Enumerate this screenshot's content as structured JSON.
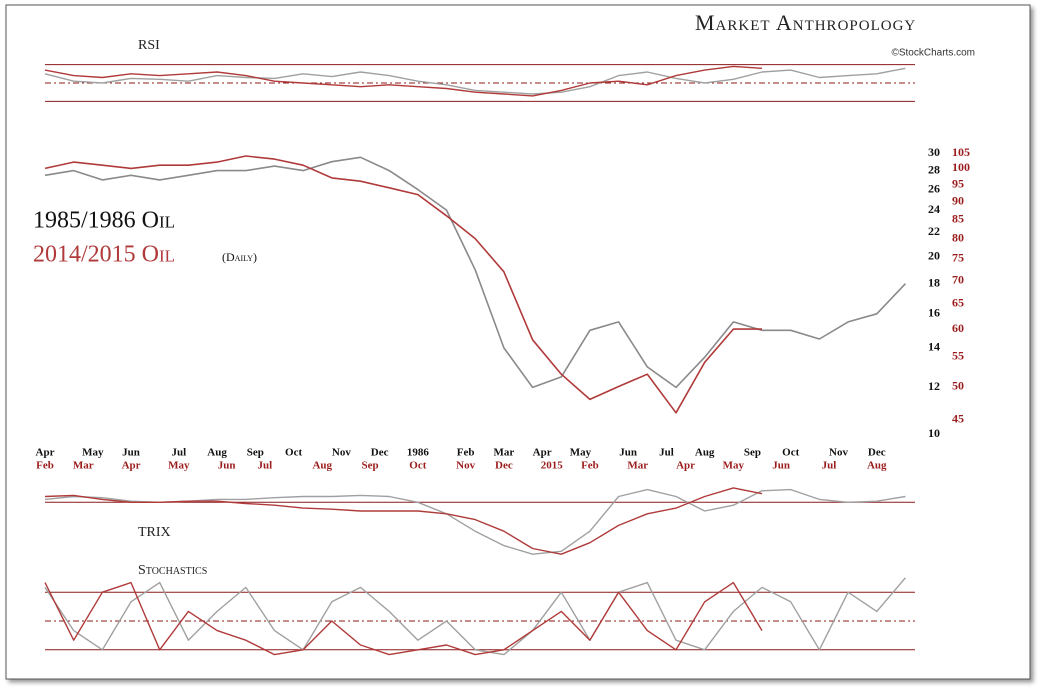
{
  "header": {
    "title": "Market Anthropology",
    "credit": "©StockCharts.com"
  },
  "chart_data": [
    {
      "type": "line",
      "title": "RSI",
      "ylim": [
        25,
        75
      ],
      "hlines": [
        30,
        50,
        70
      ],
      "xlim": [
        0,
        91
      ],
      "series": [
        {
          "name": "1985/1986 Oil",
          "color": "#a0a0a0",
          "x": [
            0,
            3,
            6,
            9,
            12,
            15,
            18,
            21,
            24,
            27,
            30,
            33,
            36,
            39,
            42,
            45,
            48,
            51,
            54,
            57,
            60,
            63,
            66,
            69,
            72,
            75,
            78,
            81,
            84,
            87,
            90
          ],
          "values": [
            60,
            52,
            50,
            55,
            54,
            52,
            58,
            56,
            55,
            60,
            57,
            62,
            58,
            52,
            48,
            42,
            40,
            38,
            40,
            46,
            58,
            62,
            55,
            50,
            54,
            62,
            64,
            56,
            58,
            60,
            66
          ]
        },
        {
          "name": "2014/2015 Oil",
          "color": "#b03a3a",
          "x": [
            0,
            3,
            6,
            9,
            12,
            15,
            18,
            21,
            24,
            27,
            30,
            33,
            36,
            39,
            42,
            45,
            48,
            51,
            54,
            57,
            60,
            63,
            66,
            69,
            72,
            75
          ],
          "values": [
            64,
            58,
            56,
            60,
            58,
            60,
            62,
            58,
            52,
            50,
            48,
            46,
            48,
            46,
            44,
            40,
            38,
            36,
            42,
            50,
            52,
            48,
            58,
            64,
            68,
            66
          ]
        }
      ]
    },
    {
      "type": "line",
      "xlim": [
        0,
        91
      ],
      "ylim": [
        10,
        30
      ],
      "log": true,
      "y2lim": [
        43,
        105
      ],
      "yticks": [
        10,
        12,
        14,
        16,
        18,
        20,
        22,
        24,
        26,
        28,
        30
      ],
      "y2ticks": [
        45,
        50,
        55,
        60,
        65,
        70,
        75,
        80,
        85,
        90,
        95,
        100,
        105
      ],
      "xticks": [
        {
          "value": 0,
          "label": "Apr"
        },
        {
          "value": 5,
          "label": "May"
        },
        {
          "value": 9,
          "label": "Jun"
        },
        {
          "value": 14,
          "label": "Jul"
        },
        {
          "value": 18,
          "label": "Aug"
        },
        {
          "value": 22,
          "label": "Sep"
        },
        {
          "value": 26,
          "label": "Oct"
        },
        {
          "value": 31,
          "label": "Nov"
        },
        {
          "value": 35,
          "label": "Dec"
        },
        {
          "value": 39,
          "label": "1986"
        },
        {
          "value": 44,
          "label": "Feb"
        },
        {
          "value": 48,
          "label": "Mar"
        },
        {
          "value": 52,
          "label": "Apr"
        },
        {
          "value": 56,
          "label": "May"
        },
        {
          "value": 61,
          "label": "Jun"
        },
        {
          "value": 65,
          "label": "Jul"
        },
        {
          "value": 69,
          "label": "Aug"
        },
        {
          "value": 74,
          "label": "Sep"
        },
        {
          "value": 78,
          "label": "Oct"
        },
        {
          "value": 83,
          "label": "Nov"
        },
        {
          "value": 87,
          "label": "Dec"
        }
      ],
      "x2ticks": [
        {
          "value": 0,
          "label": "Feb"
        },
        {
          "value": 4,
          "label": "Mar"
        },
        {
          "value": 9,
          "label": "Apr"
        },
        {
          "value": 14,
          "label": "May"
        },
        {
          "value": 19,
          "label": "Jun"
        },
        {
          "value": 23,
          "label": "Jul"
        },
        {
          "value": 29,
          "label": "Aug"
        },
        {
          "value": 34,
          "label": "Sep"
        },
        {
          "value": 39,
          "label": "Oct"
        },
        {
          "value": 44,
          "label": "Nov"
        },
        {
          "value": 48,
          "label": "Dec"
        },
        {
          "value": 53,
          "label": "2015"
        },
        {
          "value": 57,
          "label": "Feb"
        },
        {
          "value": 62,
          "label": "Mar"
        },
        {
          "value": 67,
          "label": "Apr"
        },
        {
          "value": 72,
          "label": "May"
        },
        {
          "value": 77,
          "label": "Jun"
        },
        {
          "value": 82,
          "label": "Jul"
        },
        {
          "value": 87,
          "label": "Aug"
        }
      ],
      "annotation": "(Daily)",
      "series": [
        {
          "name": "1985/1986 Oil",
          "color": "#8a8a8a",
          "x": [
            0,
            3,
            6,
            9,
            12,
            15,
            18,
            21,
            24,
            27,
            30,
            33,
            36,
            39,
            42,
            45,
            48,
            51,
            54,
            57,
            60,
            63,
            66,
            69,
            72,
            75,
            78,
            81,
            84,
            87,
            90
          ],
          "values": [
            27.5,
            28,
            27,
            27.5,
            27,
            27.5,
            28,
            28,
            28.5,
            28,
            29,
            29.5,
            28,
            26,
            24,
            19,
            14,
            12,
            12.5,
            15,
            15.5,
            13,
            12,
            13.5,
            15.5,
            15,
            15,
            14.5,
            15.5,
            16,
            18
          ]
        },
        {
          "name": "2014/2015 Oil",
          "color": "#b03a3a",
          "axis": "y2",
          "x": [
            0,
            3,
            6,
            9,
            12,
            15,
            18,
            21,
            24,
            27,
            30,
            33,
            36,
            39,
            42,
            45,
            48,
            51,
            54,
            57,
            60,
            63,
            66,
            69,
            72,
            75
          ],
          "values": [
            100,
            102,
            101,
            100,
            101,
            101,
            102,
            104,
            103,
            101,
            97,
            96,
            94,
            92,
            86,
            80,
            72,
            58,
            52,
            48,
            50,
            52,
            46,
            54,
            60,
            60
          ]
        }
      ]
    },
    {
      "type": "line",
      "title": "TRIX",
      "ylim": [
        -1,
        0.3
      ],
      "hlines": [
        0
      ],
      "xlim": [
        0,
        91
      ],
      "series": [
        {
          "name": "1985/1986 Oil",
          "color": "#a0a0a0",
          "x": [
            0,
            3,
            6,
            9,
            12,
            15,
            18,
            21,
            24,
            27,
            30,
            33,
            36,
            39,
            42,
            45,
            48,
            51,
            54,
            57,
            60,
            63,
            66,
            69,
            72,
            75,
            78,
            81,
            84,
            87,
            90
          ],
          "values": [
            0.05,
            0.1,
            0.08,
            0.02,
            0,
            0.02,
            0.05,
            0.05,
            0.08,
            0.1,
            0.1,
            0.12,
            0.1,
            0,
            -0.2,
            -0.5,
            -0.75,
            -0.9,
            -0.85,
            -0.5,
            0.1,
            0.22,
            0.1,
            -0.15,
            -0.05,
            0.2,
            0.22,
            0.05,
            0,
            0.02,
            0.1
          ]
        },
        {
          "name": "2014/2015 Oil",
          "color": "#b03a3a",
          "x": [
            0,
            3,
            6,
            9,
            12,
            15,
            18,
            21,
            24,
            27,
            30,
            33,
            36,
            39,
            42,
            45,
            48,
            51,
            54,
            57,
            60,
            63,
            66,
            69,
            72,
            75
          ],
          "values": [
            0.1,
            0.12,
            0.05,
            0,
            0,
            0.02,
            0.02,
            -0.02,
            -0.05,
            -0.1,
            -0.12,
            -0.15,
            -0.15,
            -0.15,
            -0.2,
            -0.3,
            -0.5,
            -0.8,
            -0.9,
            -0.7,
            -0.4,
            -0.2,
            -0.1,
            0.1,
            0.25,
            0.15
          ]
        }
      ]
    },
    {
      "type": "line",
      "title": "Stochastics",
      "ylim": [
        0,
        100
      ],
      "hlines": [
        20,
        50,
        80
      ],
      "xlim": [
        0,
        91
      ],
      "series": [
        {
          "name": "1985/1986 Oil",
          "color": "#a0a0a0",
          "x": [
            0,
            3,
            6,
            9,
            12,
            15,
            18,
            21,
            24,
            27,
            30,
            33,
            36,
            39,
            42,
            45,
            48,
            51,
            54,
            57,
            60,
            63,
            66,
            69,
            72,
            75,
            78,
            81,
            84,
            87,
            90
          ],
          "values": [
            85,
            40,
            20,
            70,
            90,
            30,
            60,
            85,
            40,
            20,
            70,
            85,
            60,
            30,
            50,
            20,
            15,
            40,
            80,
            30,
            80,
            90,
            30,
            20,
            60,
            85,
            70,
            20,
            80,
            60,
            95
          ]
        },
        {
          "name": "2014/2015 Oil",
          "color": "#b03a3a",
          "x": [
            0,
            3,
            6,
            9,
            12,
            15,
            18,
            21,
            24,
            27,
            30,
            33,
            36,
            39,
            42,
            45,
            48,
            51,
            54,
            57,
            60,
            63,
            66,
            69,
            72,
            75
          ],
          "values": [
            90,
            30,
            80,
            90,
            20,
            60,
            40,
            30,
            15,
            20,
            50,
            25,
            15,
            20,
            25,
            15,
            20,
            40,
            60,
            30,
            80,
            40,
            20,
            70,
            90,
            40
          ]
        }
      ]
    }
  ]
}
